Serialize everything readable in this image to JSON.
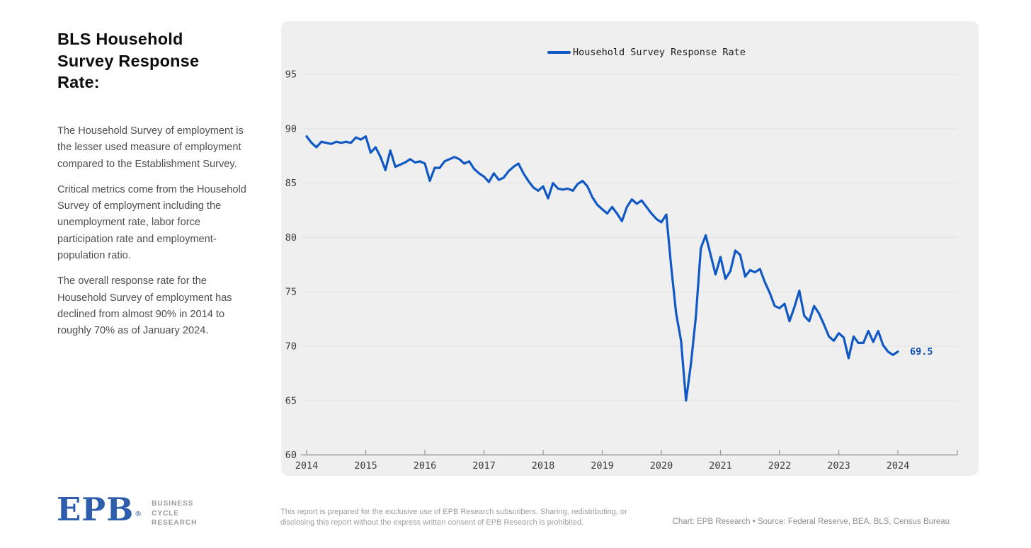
{
  "sidebar": {
    "title": "BLS Household Survey Response Rate:",
    "paragraphs": [
      "The Household Survey of employment is the lesser used measure of employment compared to the Establishment Survey.",
      "Critical metrics come from the Household Survey of employment including the unemployment rate, labor force participation rate and employment-population ratio.",
      "The overall response rate for the Household Survey of employment has declined from almost 90% in 2014 to roughly 70% as of January 2024."
    ]
  },
  "chart": {
    "legend_label": "Household Survey Response Rate",
    "end_label": "69.5",
    "line_color": "#1058c4",
    "end_label_color": "#0c52b4",
    "panel_bg": "#efefef",
    "gridline_color": "#e1e1e1",
    "axis_color": "#9a9a9a",
    "tick_label_color": "#3b3b3b"
  },
  "chart_data": {
    "type": "line",
    "title": "",
    "legend_position": "top-center",
    "grid": "horizontal",
    "ylim": [
      60,
      97
    ],
    "y_tick_labels": [
      95,
      90,
      85,
      80,
      75,
      70,
      65,
      60
    ],
    "x_tick_labels": [
      "2014",
      "2015",
      "2016",
      "2017",
      "2018",
      "2019",
      "2020",
      "2021",
      "2022",
      "2023",
      "2024"
    ],
    "series": [
      {
        "name": "Household Survey Response Rate",
        "frequency": "monthly",
        "x_start": "2014-01",
        "x_end": "2024-01",
        "last_value_label": 69.5,
        "values": [
          89.3,
          88.7,
          88.3,
          88.8,
          88.7,
          88.6,
          88.8,
          88.7,
          88.8,
          88.7,
          89.2,
          89.0,
          89.3,
          87.8,
          88.3,
          87.4,
          86.2,
          88.0,
          86.5,
          86.7,
          86.9,
          87.2,
          86.9,
          87.0,
          86.8,
          85.2,
          86.4,
          86.4,
          87.0,
          87.2,
          87.4,
          87.2,
          86.8,
          87.0,
          86.3,
          85.9,
          85.6,
          85.1,
          85.9,
          85.3,
          85.5,
          86.1,
          86.5,
          86.8,
          85.9,
          85.2,
          84.6,
          84.3,
          84.7,
          83.6,
          85.0,
          84.5,
          84.4,
          84.5,
          84.3,
          84.9,
          85.2,
          84.7,
          83.7,
          83.0,
          82.6,
          82.2,
          82.8,
          82.2,
          81.5,
          82.8,
          83.5,
          83.1,
          83.4,
          82.8,
          82.2,
          81.7,
          81.4,
          82.1,
          77.3,
          73.0,
          70.5,
          65.0,
          68.4,
          72.7,
          79.0,
          80.2,
          78.4,
          76.6,
          78.2,
          76.2,
          76.9,
          78.8,
          78.4,
          76.4,
          77.0,
          76.8,
          77.1,
          75.9,
          74.9,
          73.7,
          73.5,
          73.9,
          72.3,
          73.6,
          75.1,
          72.8,
          72.3,
          73.7,
          73.0,
          72.0,
          70.9,
          70.5,
          71.2,
          70.8,
          68.9,
          70.9,
          70.3,
          70.3,
          71.4,
          70.4,
          71.4,
          70.1,
          69.5,
          69.2,
          69.5
        ]
      }
    ]
  },
  "footer": {
    "logo_text": "EPB",
    "logo_reg": "®",
    "logo_subtitle_lines": [
      "BUSINESS",
      "CYCLE",
      "RESEARCH"
    ],
    "disclaimer": "This report is prepared for the exclusive use of EPB Research subscribers. Sharing, redistributing, or disclosing this report without the express written consent of EPB Research is prohibited.",
    "attribution": "Chart: EPB Research   •   Source: Federal Reserve, BEA, BLS, Census Bureau"
  }
}
